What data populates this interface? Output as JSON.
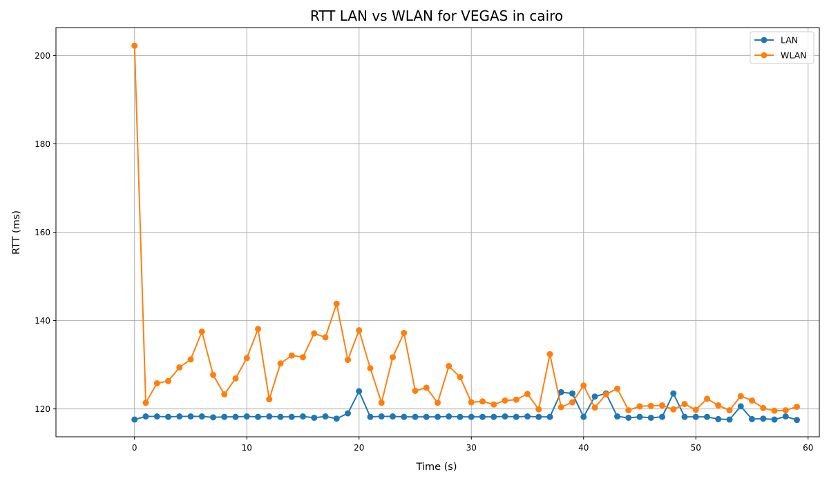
{
  "chart_data": {
    "type": "line",
    "title": "RTT LAN vs WLAN for VEGAS in cairo",
    "xlabel": "Time (s)",
    "ylabel": "RTT (ms)",
    "xlim": [
      -7,
      61
    ],
    "ylim": [
      113.7,
      206.3
    ],
    "xticks": [
      0,
      10,
      20,
      30,
      40,
      50,
      60
    ],
    "yticks": [
      120,
      140,
      160,
      180,
      200
    ],
    "grid": true,
    "legend_position": "top-right",
    "x": [
      0,
      1,
      2,
      3,
      4,
      5,
      6,
      7,
      8,
      9,
      10,
      11,
      12,
      13,
      14,
      15,
      16,
      17,
      18,
      19,
      20,
      21,
      22,
      23,
      24,
      25,
      26,
      27,
      28,
      29,
      30,
      31,
      32,
      33,
      34,
      35,
      36,
      37,
      38,
      39,
      40,
      41,
      42,
      43,
      44,
      45,
      46,
      47,
      48,
      49,
      50,
      51,
      52,
      53,
      54,
      55,
      56,
      57,
      58,
      59
    ],
    "series": [
      {
        "name": "LAN",
        "color": "#1f77b4",
        "values": [
          117.6,
          118.3,
          118.3,
          118.2,
          118.3,
          118.3,
          118.3,
          118.1,
          118.2,
          118.2,
          118.3,
          118.2,
          118.3,
          118.2,
          118.2,
          118.3,
          118.0,
          118.3,
          117.8,
          119.0,
          124.0,
          118.2,
          118.3,
          118.3,
          118.2,
          118.2,
          118.2,
          118.2,
          118.3,
          118.2,
          118.2,
          118.2,
          118.2,
          118.3,
          118.2,
          118.3,
          118.2,
          118.2,
          123.8,
          123.5,
          118.2,
          122.8,
          123.5,
          118.3,
          118.0,
          118.2,
          118.0,
          118.2,
          123.5,
          118.2,
          118.2,
          118.2,
          117.7,
          117.6,
          120.6,
          117.7,
          117.8,
          117.6,
          118.3,
          117.5
        ]
      },
      {
        "name": "WLAN",
        "color": "#ff7f0e",
        "values": [
          202.2,
          121.4,
          125.8,
          126.3,
          129.4,
          131.2,
          137.5,
          127.7,
          123.3,
          126.9,
          131.5,
          138.1,
          122.2,
          130.3,
          132.1,
          131.7,
          137.1,
          136.2,
          143.8,
          131.1,
          137.8,
          129.2,
          121.4,
          131.7,
          137.2,
          124.1,
          124.8,
          121.4,
          129.7,
          127.2,
          121.5,
          121.7,
          121.0,
          121.9,
          122.1,
          123.4,
          119.9,
          132.4,
          120.4,
          121.5,
          125.3,
          120.3,
          123.3,
          124.6,
          119.7,
          120.6,
          120.7,
          120.8,
          119.9,
          121.1,
          119.8,
          122.3,
          120.8,
          119.7,
          122.9,
          121.9,
          120.2,
          119.6,
          119.7,
          120.5
        ]
      }
    ]
  }
}
